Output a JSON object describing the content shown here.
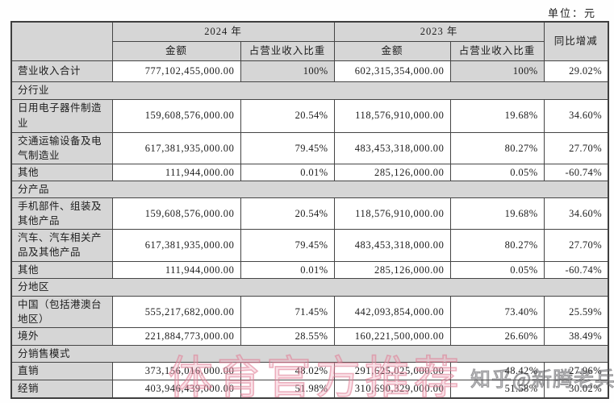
{
  "unit_label": "单位：元",
  "colors": {
    "cell_gray": "#d6d6d6",
    "border": "#454545",
    "text": "#1c1c1c",
    "watermark_pink": "#de7a92",
    "watermark_gray": "#4b4b50"
  },
  "table": {
    "header": {
      "year_2024": "2024 年",
      "year_2023": "2023 年",
      "amount": "金额",
      "ratio": "占营业收入比重",
      "yoy": "同比增减"
    },
    "rows": [
      {
        "type": "data",
        "label": "营业收入合计",
        "a24": "777,102,455,000.00",
        "r24": "100%",
        "a23": "602,315,354,000.00",
        "r23": "100%",
        "yoy": "29.02%",
        "gray_ratio": true
      },
      {
        "type": "section",
        "label": "分行业"
      },
      {
        "type": "data",
        "label": "日用电子器件制造业",
        "a24": "159,608,576,000.00",
        "r24": "20.54%",
        "a23": "118,576,910,000.00",
        "r23": "19.68%",
        "yoy": "34.60%"
      },
      {
        "type": "data",
        "label": "交通运输设备及电气制造业",
        "a24": "617,381,935,000.00",
        "r24": "79.45%",
        "a23": "483,453,318,000.00",
        "r23": "80.27%",
        "yoy": "27.70%"
      },
      {
        "type": "data",
        "label": "其他",
        "a24": "111,944,000.00",
        "r24": "0.01%",
        "a23": "285,126,000.00",
        "r23": "0.05%",
        "yoy": "-60.74%"
      },
      {
        "type": "section",
        "label": "分产品"
      },
      {
        "type": "data",
        "label": "手机部件、组装及其他产品",
        "a24": "159,608,576,000.00",
        "r24": "20.54%",
        "a23": "118,576,910,000.00",
        "r23": "19.68%",
        "yoy": "34.60%"
      },
      {
        "type": "data",
        "label": "汽车、汽车相关产品及其他产品",
        "a24": "617,381,935,000.00",
        "r24": "79.45%",
        "a23": "483,453,318,000.00",
        "r23": "80.27%",
        "yoy": "27.70%"
      },
      {
        "type": "data",
        "label": "其他",
        "a24": "111,944,000.00",
        "r24": "0.01%",
        "a23": "285,126,000.00",
        "r23": "0.05%",
        "yoy": "-60.74%"
      },
      {
        "type": "section",
        "label": "分地区"
      },
      {
        "type": "data",
        "label": "中国（包括港澳台地区）",
        "a24": "555,217,682,000.00",
        "r24": "71.45%",
        "a23": "442,093,854,000.00",
        "r23": "73.40%",
        "yoy": "25.59%"
      },
      {
        "type": "data",
        "label": "境外",
        "a24": "221,884,773,000.00",
        "r24": "28.55%",
        "a23": "160,221,500,000.00",
        "r23": "26.60%",
        "yoy": "38.49%"
      },
      {
        "type": "section",
        "label": "分销售模式"
      },
      {
        "type": "data",
        "label": "直销",
        "a24": "373,156,016,000.00",
        "r24": "48.02%",
        "a23": "291,625,025,000.00",
        "r23": "48.42%",
        "yoy": "27.96%"
      },
      {
        "type": "data",
        "label": "经销",
        "a24": "403,946,439,000.00",
        "r24": "51.98%",
        "a23": "310,690,329,000.00",
        "r23": "51.58%",
        "yoy": "30.02%"
      }
    ]
  },
  "watermarks": {
    "center": "体育官方推荐",
    "corner": "知乎@新腾老兵"
  }
}
